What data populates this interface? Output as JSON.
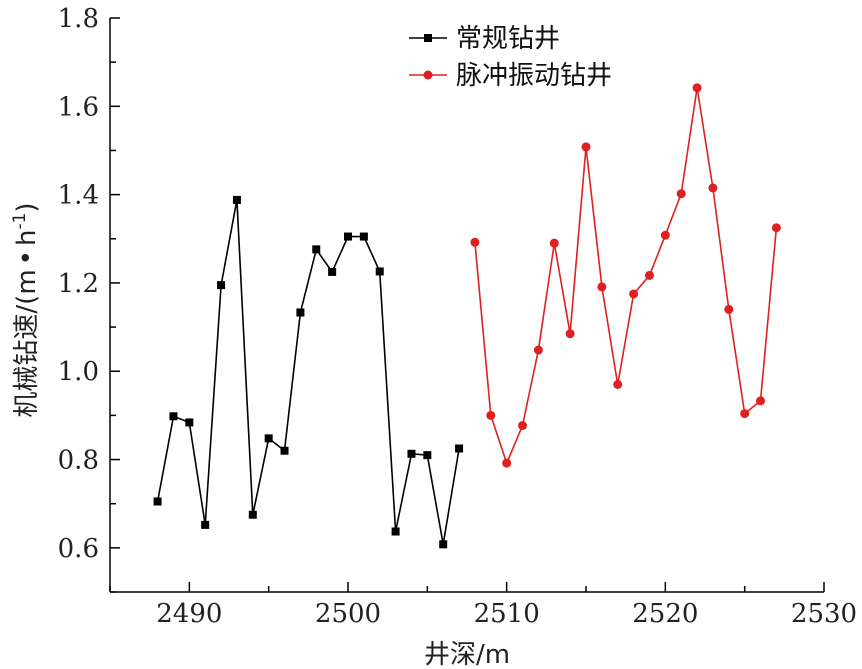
{
  "chart_data": {
    "type": "line",
    "title": "",
    "xlabel": "井深/m",
    "ylabel": "机械钻速/(m·h-1)",
    "ylabel_main": "机械钻速/(m",
    "ylabel_dot": "•",
    "ylabel_h": "h",
    "ylabel_exp": "-1",
    "ylabel_close": ")",
    "xlim": [
      2485,
      2530
    ],
    "ylim": [
      0.5,
      1.8
    ],
    "xticks": [
      2490,
      2500,
      2510,
      2520,
      2530
    ],
    "yticks": [
      0.6,
      0.8,
      1.0,
      1.2,
      1.4,
      1.6,
      1.8
    ],
    "xtick_labels": [
      "2490",
      "2500",
      "2510",
      "2520",
      "2530"
    ],
    "ytick_labels": [
      "0.6",
      "0.8",
      "1.0",
      "1.2",
      "1.4",
      "1.6",
      "1.8"
    ],
    "grid": false,
    "legend_position": "top-right",
    "series": [
      {
        "name": "常规钻井",
        "color": "#000000",
        "marker": "square",
        "x": [
          2488,
          2489,
          2490,
          2491,
          2492,
          2493,
          2494,
          2495,
          2496,
          2497,
          2498,
          2499,
          2500,
          2501,
          2502,
          2503,
          2504,
          2505,
          2506,
          2507
        ],
        "y": [
          0.705,
          0.898,
          0.884,
          0.652,
          1.195,
          1.388,
          0.675,
          0.848,
          0.82,
          1.133,
          1.276,
          1.225,
          1.305,
          1.305,
          1.226,
          0.637,
          0.813,
          0.81,
          0.608,
          0.825
        ]
      },
      {
        "name": "脉冲振动钻井",
        "color": "#e02020",
        "marker": "circle",
        "x": [
          2508,
          2509,
          2510,
          2511,
          2512,
          2513,
          2514,
          2515,
          2516,
          2517,
          2518,
          2519,
          2520,
          2521,
          2522,
          2523,
          2524,
          2525,
          2526,
          2527
        ],
        "y": [
          1.292,
          0.9,
          0.792,
          0.877,
          1.048,
          1.29,
          1.085,
          1.508,
          1.191,
          0.97,
          1.175,
          1.217,
          1.308,
          1.402,
          1.642,
          1.415,
          1.14,
          0.904,
          0.933,
          1.325
        ]
      }
    ]
  }
}
